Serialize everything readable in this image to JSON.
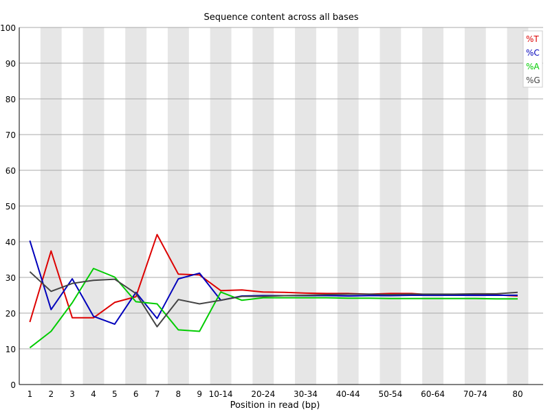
{
  "chart_data": {
    "type": "line",
    "title": "Sequence content across all bases",
    "xlabel": "Position in read (bp)",
    "ylabel": "",
    "ylim": [
      0,
      100
    ],
    "yticks": [
      0,
      10,
      20,
      30,
      40,
      50,
      60,
      70,
      80,
      90,
      100
    ],
    "grid": true,
    "legend_position": "top-right",
    "categories": [
      "1",
      "2",
      "3",
      "4",
      "5",
      "6",
      "7",
      "8",
      "9",
      "10-14",
      "15-19",
      "20-24",
      "25-29",
      "30-34",
      "35-39",
      "40-44",
      "45-49",
      "50-54",
      "55-59",
      "60-64",
      "65-69",
      "70-74",
      "75-79",
      "80"
    ],
    "x_tick_labels": [
      "1",
      "2",
      "3",
      "4",
      "5",
      "6",
      "7",
      "8",
      "9",
      "10-14",
      "",
      "20-24",
      "",
      "30-34",
      "",
      "40-44",
      "",
      "50-54",
      "",
      "60-64",
      "",
      "70-74",
      "",
      "80"
    ],
    "series": [
      {
        "name": "%T",
        "color": "#dd0000",
        "values": [
          17.5,
          37.4,
          18.7,
          18.7,
          23.0,
          24.6,
          42.0,
          30.9,
          30.7,
          26.3,
          26.5,
          25.9,
          25.8,
          25.6,
          25.5,
          25.5,
          25.3,
          25.5,
          25.5,
          25.1,
          25.1,
          25.1,
          25.1,
          24.8
        ]
      },
      {
        "name": "%C",
        "color": "#0000bb",
        "values": [
          40.3,
          21.0,
          29.6,
          19.1,
          16.9,
          25.8,
          18.5,
          29.6,
          31.2,
          23.6,
          24.8,
          24.9,
          24.9,
          24.9,
          24.9,
          24.8,
          24.9,
          24.9,
          25.0,
          25.0,
          25.0,
          25.0,
          25.0,
          25.0
        ]
      },
      {
        "name": "%A",
        "color": "#00cc00",
        "values": [
          10.3,
          14.9,
          22.9,
          32.5,
          30.1,
          23.2,
          22.6,
          15.3,
          14.9,
          25.9,
          23.6,
          24.3,
          24.3,
          24.3,
          24.3,
          24.2,
          24.2,
          24.1,
          24.1,
          24.1,
          24.1,
          24.1,
          24.0,
          24.0
        ]
      },
      {
        "name": "%G",
        "color": "#444444",
        "values": [
          31.6,
          26.1,
          28.3,
          29.2,
          29.5,
          25.5,
          16.2,
          23.8,
          22.6,
          23.6,
          24.7,
          24.7,
          24.9,
          25.0,
          25.2,
          25.3,
          25.3,
          25.2,
          25.3,
          25.3,
          25.3,
          25.4,
          25.4,
          25.8
        ]
      }
    ]
  }
}
